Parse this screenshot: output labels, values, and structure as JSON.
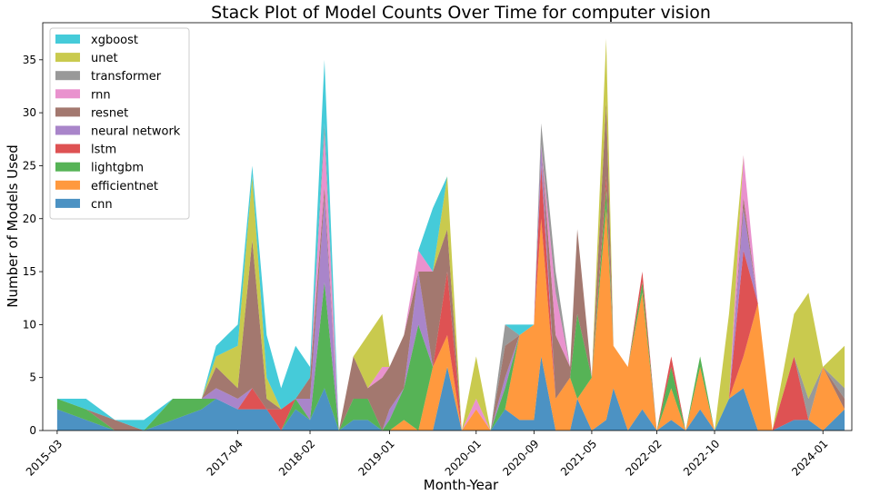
{
  "chart_data": {
    "type": "area",
    "stacked": true,
    "title": "Stack Plot of Model Counts Over Time for computer vision",
    "xlabel": "Month-Year",
    "ylabel": "Number of Models Used",
    "ylim": [
      0,
      38.5
    ],
    "yticks": [
      0,
      5,
      10,
      15,
      20,
      25,
      30,
      35
    ],
    "xlim": [
      "2015-01",
      "2024-05"
    ],
    "xticks": [
      "2015-03",
      "2017-04",
      "2018-02",
      "2019-01",
      "2020-01",
      "2020-09",
      "2021-05",
      "2022-02",
      "2022-10",
      "2024-01"
    ],
    "legend_position": "upper-left",
    "x": [
      "2015-03",
      "2015-07",
      "2015-11",
      "2016-03",
      "2016-07",
      "2016-11",
      "2017-01",
      "2017-04",
      "2017-06",
      "2017-08",
      "2017-10",
      "2017-12",
      "2018-02",
      "2018-04",
      "2018-06",
      "2018-08",
      "2018-10",
      "2018-12",
      "2019-01",
      "2019-03",
      "2019-05",
      "2019-07",
      "2019-09",
      "2019-11",
      "2020-01",
      "2020-03",
      "2020-05",
      "2020-07",
      "2020-09",
      "2020-10",
      "2020-12",
      "2021-02",
      "2021-03",
      "2021-05",
      "2021-07",
      "2021-08",
      "2021-10",
      "2021-12",
      "2022-02",
      "2022-04",
      "2022-06",
      "2022-08",
      "2022-10",
      "2022-12",
      "2023-02",
      "2023-04",
      "2023-06",
      "2023-09",
      "2023-11",
      "2024-01",
      "2024-04"
    ],
    "series": [
      {
        "name": "cnn",
        "color": "#1f77b4",
        "values": [
          2,
          1,
          0,
          0,
          1,
          2,
          3,
          2,
          2,
          2,
          0,
          2,
          1,
          4,
          0,
          1,
          1,
          0,
          0,
          0,
          0,
          0,
          6,
          0,
          0,
          0,
          2,
          1,
          1,
          7,
          0,
          0,
          3,
          0,
          1,
          4,
          0,
          2,
          0,
          1,
          0,
          2,
          0,
          3,
          4,
          0,
          0,
          1,
          1,
          0,
          2
        ]
      },
      {
        "name": "efficientnet",
        "color": "#ff7f0e",
        "values": [
          0,
          0,
          0,
          0,
          0,
          0,
          0,
          0,
          0,
          0,
          0,
          0,
          0,
          0,
          0,
          0,
          0,
          0,
          0,
          1,
          0,
          6,
          3,
          0,
          2,
          0,
          0,
          8,
          9,
          13,
          3,
          5,
          0,
          5,
          20,
          4,
          6,
          11,
          0,
          3,
          0,
          4,
          0,
          0,
          3,
          12,
          0,
          0,
          0,
          6,
          0
        ]
      },
      {
        "name": "lightgbm",
        "color": "#2ca02c",
        "values": [
          1,
          1,
          0,
          0,
          2,
          1,
          0,
          0,
          0,
          0,
          0,
          1,
          0,
          10,
          0,
          2,
          2,
          0,
          1,
          3,
          10,
          0,
          0,
          0,
          0,
          0,
          2,
          0,
          0,
          0,
          0,
          0,
          8,
          0,
          2,
          0,
          0,
          1,
          0,
          2,
          0,
          1,
          0,
          0,
          0,
          0,
          0,
          0,
          0,
          0,
          0
        ]
      },
      {
        "name": "lstm",
        "color": "#d62728",
        "values": [
          0,
          0,
          0,
          0,
          0,
          0,
          0,
          0,
          2,
          0,
          2,
          0,
          0,
          0,
          0,
          0,
          0,
          0,
          0,
          0,
          0,
          0,
          6,
          0,
          0,
          0,
          0,
          0,
          0,
          5,
          0,
          0,
          0,
          0,
          1,
          0,
          0,
          1,
          0,
          1,
          0,
          0,
          0,
          0,
          10,
          0,
          0,
          6,
          0,
          0,
          0
        ]
      },
      {
        "name": "neural network",
        "color": "#9467bd",
        "values": [
          0,
          0,
          0,
          0,
          0,
          0,
          1,
          1,
          0,
          0,
          0,
          0,
          2,
          8,
          0,
          0,
          0,
          0,
          1,
          0,
          5,
          0,
          0,
          0,
          0,
          0,
          1,
          0,
          0,
          2,
          0,
          0,
          0,
          0,
          0,
          0,
          0,
          0,
          0,
          0,
          0,
          0,
          0,
          0,
          4,
          0,
          0,
          0,
          0,
          0,
          0
        ]
      },
      {
        "name": "resnet",
        "color": "#8c564b",
        "values": [
          0,
          0,
          1,
          0,
          0,
          0,
          2,
          1,
          14,
          1,
          0,
          0,
          2,
          1,
          0,
          4,
          1,
          5,
          4,
          5,
          0,
          9,
          4,
          0,
          0,
          0,
          3,
          0,
          0,
          0,
          6,
          1,
          8,
          0,
          7,
          0,
          0,
          0,
          0,
          0,
          0,
          0,
          0,
          0,
          1,
          0,
          0,
          0,
          0,
          0,
          1
        ]
      },
      {
        "name": "rnn",
        "color": "#e377c2",
        "values": [
          0,
          0,
          0,
          0,
          0,
          0,
          0,
          0,
          0,
          0,
          0,
          0,
          0,
          5,
          0,
          0,
          0,
          1,
          0,
          0,
          2,
          0,
          0,
          0,
          1,
          0,
          0,
          0,
          0,
          0,
          4,
          0,
          0,
          0,
          0,
          0,
          0,
          0,
          0,
          0,
          0,
          0,
          0,
          0,
          4,
          0,
          0,
          0,
          0,
          0,
          0
        ]
      },
      {
        "name": "transformer",
        "color": "#7f7f7f",
        "values": [
          0,
          0,
          0,
          0,
          0,
          0,
          0,
          0,
          0,
          0,
          0,
          0,
          0,
          1,
          0,
          0,
          0,
          0,
          0,
          0,
          0,
          0,
          0,
          0,
          0,
          0,
          2,
          0,
          0,
          2,
          2,
          0,
          0,
          0,
          0,
          0,
          0,
          0,
          0,
          0,
          0,
          0,
          0,
          0,
          0,
          0,
          0,
          0,
          2,
          0,
          1
        ]
      },
      {
        "name": "unet",
        "color": "#bcbd22",
        "values": [
          0,
          0,
          0,
          0,
          0,
          0,
          1,
          4,
          6,
          2,
          0,
          0,
          0,
          0,
          0,
          0,
          5,
          5,
          0,
          0,
          0,
          0,
          5,
          0,
          4,
          0,
          0,
          0,
          0,
          0,
          0,
          0,
          0,
          0,
          6,
          0,
          0,
          0,
          0,
          0,
          0,
          0,
          0,
          8,
          0,
          0,
          0,
          4,
          10,
          0,
          4
        ]
      },
      {
        "name": "xgboost",
        "color": "#17becf",
        "values": [
          0,
          1,
          0,
          1,
          0,
          0,
          1,
          2,
          1,
          4,
          2,
          5,
          1,
          6,
          0,
          0,
          0,
          0,
          0,
          0,
          0,
          6,
          0,
          0,
          0,
          0,
          0,
          1,
          0,
          0,
          0,
          0,
          0,
          0,
          0,
          0,
          0,
          0,
          0,
          0,
          0,
          0,
          0,
          0,
          0,
          0,
          0,
          0,
          0,
          0,
          0
        ]
      }
    ]
  }
}
